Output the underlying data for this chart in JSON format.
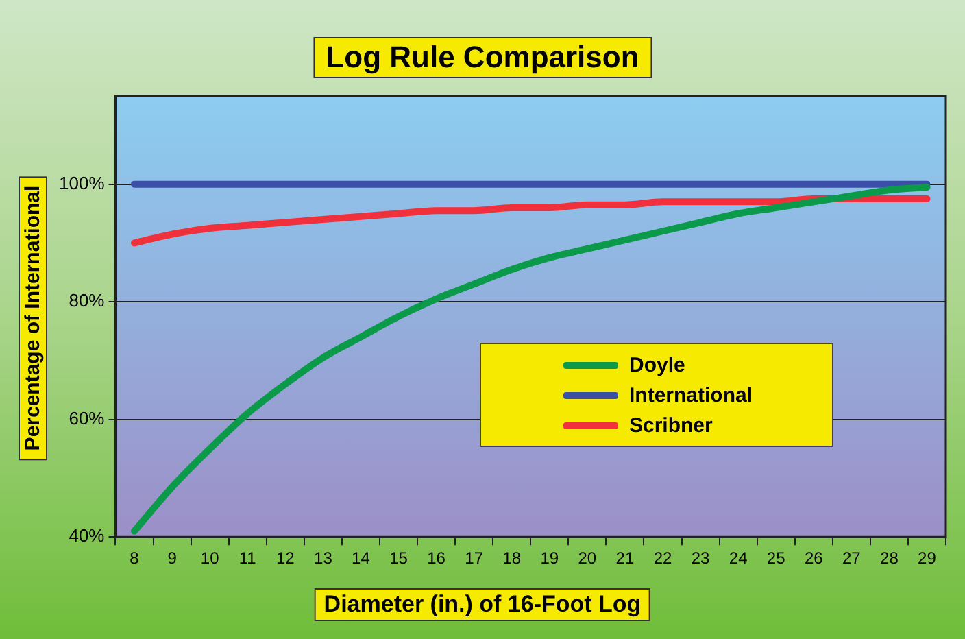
{
  "chart_data": {
    "type": "line",
    "title": "Log Rule Comparison",
    "xlabel": "Diameter (in.) of 16-Foot Log",
    "ylabel": "Percentage of International",
    "categories": [
      "8",
      "9",
      "10",
      "11",
      "12",
      "13",
      "14",
      "15",
      "16",
      "17",
      "18",
      "19",
      "20",
      "21",
      "22",
      "23",
      "24",
      "25",
      "26",
      "27",
      "28",
      "29"
    ],
    "series": [
      {
        "name": "Doyle",
        "color": "#0a9a4a",
        "values": [
          41,
          48.5,
          55,
          61,
          66,
          70.5,
          74,
          77.5,
          80.5,
          83,
          85.5,
          87.5,
          89,
          90.5,
          92,
          93.5,
          95,
          96,
          97,
          98,
          99,
          99.5
        ]
      },
      {
        "name": "International",
        "color": "#3a4fa8",
        "values": [
          100,
          100,
          100,
          100,
          100,
          100,
          100,
          100,
          100,
          100,
          100,
          100,
          100,
          100,
          100,
          100,
          100,
          100,
          100,
          100,
          100,
          100
        ]
      },
      {
        "name": "Scribner",
        "color": "#f0303a",
        "values": [
          90,
          91.5,
          92.5,
          93,
          93.5,
          94,
          94.5,
          95,
          95.5,
          95.5,
          96,
          96,
          96.5,
          96.5,
          97,
          97,
          97,
          97,
          97.5,
          97.5,
          97.5,
          97.5
        ]
      }
    ],
    "ylim": [
      40,
      115
    ],
    "yticks": [
      {
        "value": 40,
        "label": "40%"
      },
      {
        "value": 60,
        "label": "60%"
      },
      {
        "value": 80,
        "label": "80%"
      },
      {
        "value": 100,
        "label": "100%"
      }
    ],
    "grid": "y",
    "legend": "right",
    "marker": "none",
    "line_style": "solid"
  }
}
